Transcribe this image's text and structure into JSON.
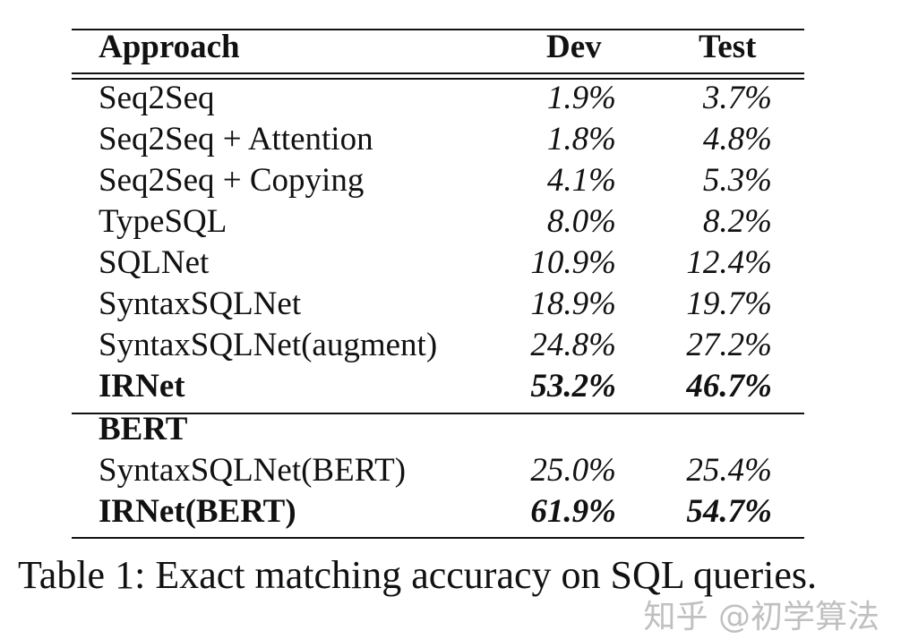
{
  "table": {
    "headers": [
      "Approach",
      "Dev",
      "Test"
    ],
    "rows": [
      {
        "approach": "Seq2Seq",
        "dev": "1.9%",
        "test": "3.7%",
        "bold": false
      },
      {
        "approach": "Seq2Seq + Attention",
        "dev": "1.8%",
        "test": "4.8%",
        "bold": false
      },
      {
        "approach": "Seq2Seq + Copying",
        "dev": "4.1%",
        "test": "5.3%",
        "bold": false
      },
      {
        "approach": "TypeSQL",
        "dev": "8.0%",
        "test": "8.2%",
        "bold": false
      },
      {
        "approach": "SQLNet",
        "dev": "10.9%",
        "test": "12.4%",
        "bold": false
      },
      {
        "approach": "SyntaxSQLNet",
        "dev": "18.9%",
        "test": "19.7%",
        "bold": false
      },
      {
        "approach": "SyntaxSQLNet(augment)",
        "dev": "24.8%",
        "test": "27.2%",
        "bold": false
      },
      {
        "approach": "IRNet",
        "dev": "53.2%",
        "test": "46.7%",
        "bold": true
      }
    ],
    "section_label": "BERT",
    "bert_rows": [
      {
        "approach": "SyntaxSQLNet(BERT)",
        "dev": "25.0%",
        "test": "25.4%",
        "bold": false
      },
      {
        "approach": "IRNet(BERT)",
        "dev": "61.9%",
        "test": "54.7%",
        "bold": true
      }
    ]
  },
  "caption": "Table 1:  Exact matching accuracy on SQL queries.",
  "watermark": "知乎 @初学算法"
}
